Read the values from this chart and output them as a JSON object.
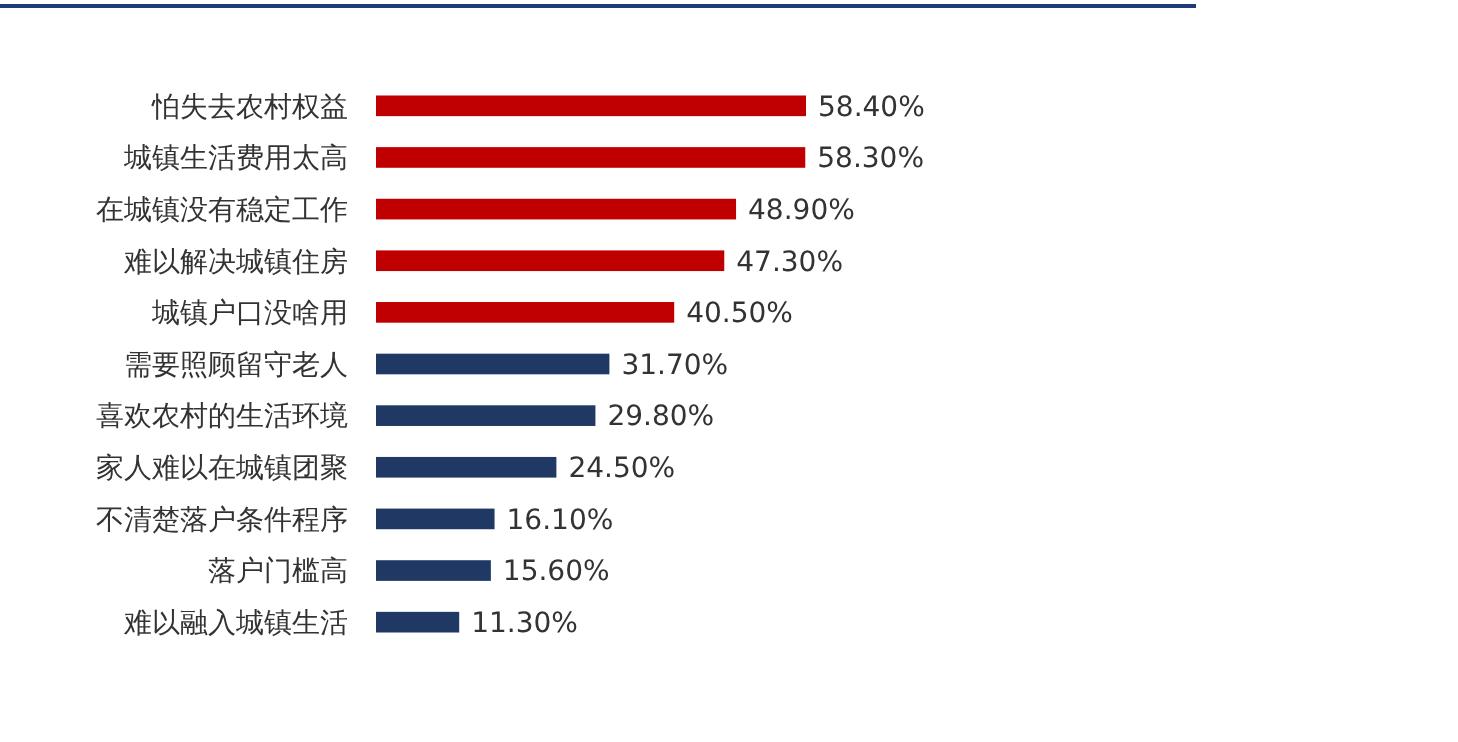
{
  "chart_data": {
    "type": "bar",
    "orientation": "horizontal",
    "categories": [
      "怕失去农村权益",
      "城镇生活费用太高",
      "在城镇没有稳定工作",
      "难以解决城镇住房",
      "城镇户口没啥用",
      "需要照顾留守老人",
      "喜欢农村的生活环境",
      "家人难以在城镇团聚",
      "不清楚落户条件程序",
      "落户门槛高",
      "难以融入城镇生活"
    ],
    "values": [
      58.4,
      58.3,
      48.9,
      47.3,
      40.5,
      31.7,
      29.8,
      24.5,
      16.1,
      15.6,
      11.3
    ],
    "value_labels": [
      "58.40%",
      "58.30%",
      "48.90%",
      "47.30%",
      "40.50%",
      "31.70%",
      "29.80%",
      "24.50%",
      "16.10%",
      "15.60%",
      "11.30%"
    ],
    "colors": [
      "#c00000",
      "#c00000",
      "#c00000",
      "#c00000",
      "#c00000",
      "#1f3864",
      "#1f3864",
      "#1f3864",
      "#1f3864",
      "#1f3864",
      "#1f3864"
    ]
  }
}
